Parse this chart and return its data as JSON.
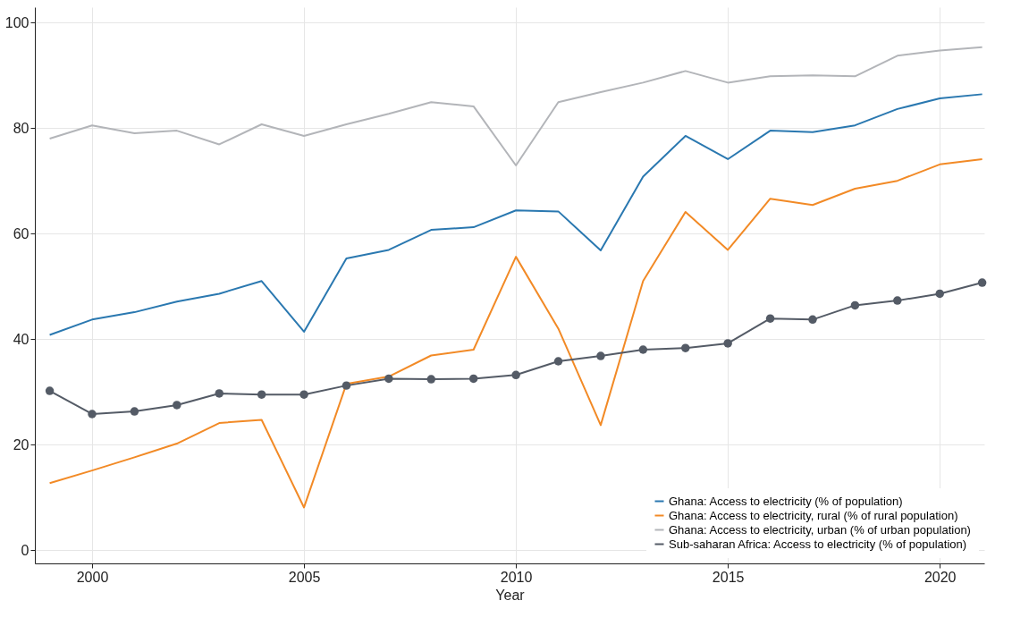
{
  "chart_data": {
    "type": "line",
    "xlabel": "Year",
    "x": [
      1999,
      2000,
      2001,
      2002,
      2003,
      2004,
      2005,
      2006,
      2007,
      2008,
      2009,
      2010,
      2011,
      2012,
      2013,
      2014,
      2015,
      2016,
      2017,
      2018,
      2019,
      2020,
      2021
    ],
    "xlim": [
      1998.65,
      2021.05
    ],
    "xticks": [
      2000,
      2005,
      2010,
      2015,
      2020
    ],
    "ylim": [
      -2.5,
      102.9
    ],
    "yticks": [
      0,
      20,
      40,
      60,
      80,
      100
    ],
    "grid": true,
    "legend": "bottom right",
    "series": [
      {
        "name": "Ghana: Access to electricity (% of population)",
        "color": "#2a78b0",
        "values": [
          40.8,
          43.7,
          45.1,
          47.1,
          48.6,
          51.0,
          41.4,
          55.3,
          56.9,
          60.7,
          61.2,
          64.4,
          64.2,
          56.8,
          70.8,
          78.5,
          74.1,
          79.5,
          79.2,
          80.5,
          83.6,
          85.6,
          86.4
        ]
      },
      {
        "name": "Ghana: Access to electricity, rural (% of rural population)",
        "color": "#f28a26",
        "values": [
          12.7,
          15.1,
          17.6,
          20.2,
          24.1,
          24.7,
          8.1,
          31.5,
          32.9,
          36.9,
          38.0,
          55.6,
          42.0,
          23.7,
          51.0,
          64.1,
          56.9,
          66.6,
          65.4,
          68.5,
          70.0,
          73.1,
          74.1
        ]
      },
      {
        "name": "Ghana: Access to electricity, urban (% of urban population)",
        "color": "#b3b5b9",
        "values": [
          78.0,
          80.5,
          79.0,
          79.5,
          76.9,
          80.7,
          78.5,
          80.7,
          82.7,
          84.9,
          84.1,
          72.9,
          84.9,
          86.8,
          88.6,
          90.8,
          88.6,
          89.8,
          90.0,
          89.8,
          93.7,
          94.7,
          95.3
        ]
      },
      {
        "name": "Sub-saharan Africa: Access to electricity (% of population)",
        "color": "#545b66",
        "marker": "circle",
        "values": [
          30.2,
          25.8,
          26.3,
          27.5,
          29.7,
          29.5,
          29.5,
          31.2,
          32.5,
          32.4,
          32.5,
          33.2,
          35.8,
          36.8,
          38.0,
          38.3,
          39.2,
          43.9,
          43.7,
          46.4,
          47.3,
          48.6,
          50.7
        ]
      }
    ]
  }
}
